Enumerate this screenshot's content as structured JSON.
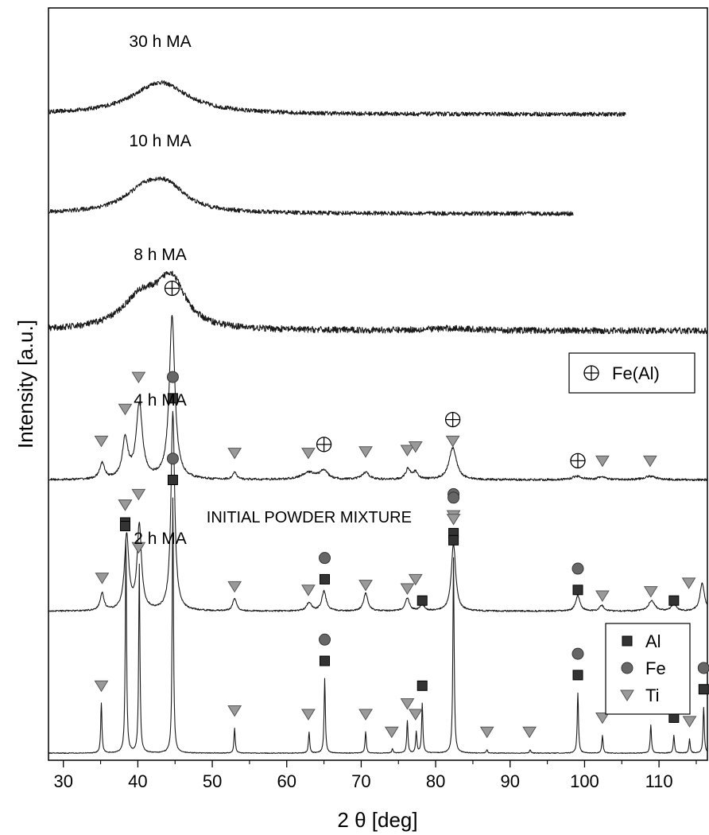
{
  "chart_data": {
    "type": "line",
    "xlabel": "2 θ [deg]",
    "ylabel": "Intensity [a.u.]",
    "xlim": [
      28,
      116.5
    ],
    "x_ticks": [
      30,
      40,
      50,
      60,
      70,
      80,
      90,
      100,
      110
    ],
    "x_tick_labels": [
      "30",
      "40",
      "50",
      "60",
      "70",
      "80",
      "90",
      "100",
      "110"
    ],
    "grid": false,
    "series": [
      {
        "name": "30 h MA",
        "x_end": 105.5,
        "baseline": 9.0,
        "peaks": [
          [
            43.0,
            0.45,
            4.5
          ]
        ],
        "noise": 0.03
      },
      {
        "name": "10 h MA",
        "x_end": 98.5,
        "baseline": 7.6,
        "peaks": [
          [
            41.0,
            0.3,
            3.5
          ],
          [
            44.0,
            0.3,
            3.0
          ]
        ],
        "noise": 0.03
      },
      {
        "name": "8 h MA",
        "x_end": 116.5,
        "baseline": 5.95,
        "peaks": [
          [
            40.5,
            0.45,
            3.2
          ],
          [
            44.5,
            0.65,
            2.2
          ],
          [
            82.0,
            0.03,
            4.0
          ]
        ],
        "noise": 0.045
      },
      {
        "name": "4 h MA",
        "x_end": 116.5,
        "baseline": 3.85,
        "peaks": [
          [
            35.2,
            0.22,
            0.4
          ],
          [
            38.3,
            0.55,
            0.45
          ],
          [
            40.2,
            1.05,
            0.5
          ],
          [
            44.6,
            2.3,
            0.45
          ],
          [
            53.0,
            0.1,
            0.3
          ],
          [
            63.0,
            0.1,
            1.2
          ],
          [
            65.0,
            0.12,
            0.6
          ],
          [
            70.6,
            0.1,
            0.6
          ],
          [
            76.3,
            0.15,
            0.4
          ],
          [
            77.3,
            0.1,
            0.4
          ],
          [
            82.3,
            0.45,
            0.6
          ],
          [
            99.0,
            0.05,
            0.8
          ],
          [
            102.3,
            0.04,
            0.6
          ],
          [
            108.8,
            0.05,
            1.0
          ]
        ],
        "noise": 0.015
      },
      {
        "name": "2 h MA",
        "x_end": 116.5,
        "baseline": 2.0,
        "peaks": [
          [
            35.2,
            0.25,
            0.3
          ],
          [
            38.5,
            1.05,
            0.35
          ],
          [
            40.2,
            1.2,
            0.35
          ],
          [
            44.7,
            2.8,
            0.3
          ],
          [
            53.0,
            0.18,
            0.3
          ],
          [
            63.0,
            0.12,
            0.4
          ],
          [
            65.0,
            0.28,
            0.35
          ],
          [
            70.6,
            0.25,
            0.35
          ],
          [
            76.2,
            0.18,
            0.35
          ],
          [
            78.2,
            0.1,
            0.3
          ],
          [
            82.4,
            0.95,
            0.35
          ],
          [
            99.1,
            0.22,
            0.35
          ],
          [
            102.3,
            0.08,
            0.35
          ],
          [
            109.0,
            0.15,
            0.5
          ],
          [
            112.0,
            0.1,
            0.4
          ],
          [
            115.8,
            0.4,
            0.35
          ]
        ],
        "noise": 0.01
      },
      {
        "name": "INITIAL POWDER MIXTURE",
        "x_end": 116.5,
        "baseline": 0.0,
        "peaks": [
          [
            35.1,
            0.7,
            0.1
          ],
          [
            38.4,
            3.0,
            0.1
          ],
          [
            40.2,
            2.65,
            0.1
          ],
          [
            44.7,
            3.6,
            0.1
          ],
          [
            53.0,
            0.35,
            0.1
          ],
          [
            63.0,
            0.3,
            0.1
          ],
          [
            65.1,
            1.05,
            0.1
          ],
          [
            70.6,
            0.3,
            0.1
          ],
          [
            74.2,
            0.06,
            0.1
          ],
          [
            76.2,
            0.45,
            0.1
          ],
          [
            77.4,
            0.3,
            0.1
          ],
          [
            78.2,
            0.7,
            0.1
          ],
          [
            82.4,
            2.75,
            0.1
          ],
          [
            86.9,
            0.05,
            0.1
          ],
          [
            92.7,
            0.05,
            0.1
          ],
          [
            99.1,
            0.85,
            0.1
          ],
          [
            102.4,
            0.25,
            0.1
          ],
          [
            108.9,
            0.4,
            0.1
          ],
          [
            112.0,
            0.25,
            0.1
          ],
          [
            114.1,
            0.2,
            0.1
          ],
          [
            116.0,
            0.65,
            0.1
          ]
        ],
        "noise": 0.005
      }
    ],
    "annotations": [
      {
        "text": "30 h MA",
        "x": 43.0,
        "y": 9.95
      },
      {
        "text": "10 h MA",
        "x": 43.0,
        "y": 8.55
      },
      {
        "text": "8 h MA",
        "x": 43.0,
        "y": 6.95
      },
      {
        "text": "4 h MA",
        "x": 43.0,
        "y": 4.9
      },
      {
        "text": "2 h MA",
        "x": 43.0,
        "y": 2.95
      },
      {
        "text": "INITIAL POWDER MIXTURE",
        "x": 63.0,
        "y": 3.25
      }
    ],
    "phase_markers": [
      {
        "phase": "Ti",
        "x": 35.1,
        "y": 4.4
      },
      {
        "phase": "Ti",
        "x": 38.3,
        "y": 4.85
      },
      {
        "phase": "Ti",
        "x": 40.1,
        "y": 5.3
      },
      {
        "phase": "Fe(Al)",
        "x": 44.6,
        "y": 6.55
      },
      {
        "phase": "Ti",
        "x": 53.0,
        "y": 4.23
      },
      {
        "phase": "Ti",
        "x": 62.9,
        "y": 4.23
      },
      {
        "phase": "Fe(Al)",
        "x": 65.0,
        "y": 4.35
      },
      {
        "phase": "Ti",
        "x": 70.6,
        "y": 4.25
      },
      {
        "phase": "Ti",
        "x": 76.2,
        "y": 4.27
      },
      {
        "phase": "Ti",
        "x": 77.3,
        "y": 4.32
      },
      {
        "phase": "Ti",
        "x": 82.3,
        "y": 4.4
      },
      {
        "phase": "Fe(Al)",
        "x": 82.3,
        "y": 4.7
      },
      {
        "phase": "Fe(Al)",
        "x": 99.1,
        "y": 4.12
      },
      {
        "phase": "Ti",
        "x": 102.4,
        "y": 4.12
      },
      {
        "phase": "Ti",
        "x": 108.8,
        "y": 4.12
      },
      {
        "phase": "Ti",
        "x": 35.2,
        "y": 2.47
      },
      {
        "phase": "Al",
        "x": 38.3,
        "y": 3.25
      },
      {
        "phase": "Ti",
        "x": 38.3,
        "y": 3.5
      },
      {
        "phase": "Ti",
        "x": 40.1,
        "y": 3.65
      },
      {
        "phase": "Al",
        "x": 44.7,
        "y": 5.0
      },
      {
        "phase": "Fe",
        "x": 44.7,
        "y": 5.3
      },
      {
        "phase": "Ti",
        "x": 53.0,
        "y": 2.35
      },
      {
        "phase": "Ti",
        "x": 62.9,
        "y": 2.3
      },
      {
        "phase": "Al",
        "x": 65.1,
        "y": 2.45
      },
      {
        "phase": "Fe",
        "x": 65.1,
        "y": 2.75
      },
      {
        "phase": "Ti",
        "x": 70.6,
        "y": 2.37
      },
      {
        "phase": "Ti",
        "x": 76.2,
        "y": 2.32
      },
      {
        "phase": "Ti",
        "x": 77.3,
        "y": 2.45
      },
      {
        "phase": "Al",
        "x": 78.2,
        "y": 2.15
      },
      {
        "phase": "Al",
        "x": 82.4,
        "y": 3.1
      },
      {
        "phase": "Ti",
        "x": 82.4,
        "y": 3.35
      },
      {
        "phase": "Fe",
        "x": 82.4,
        "y": 3.65
      },
      {
        "phase": "Al",
        "x": 99.1,
        "y": 2.3
      },
      {
        "phase": "Fe",
        "x": 99.1,
        "y": 2.6
      },
      {
        "phase": "Ti",
        "x": 102.4,
        "y": 2.22
      },
      {
        "phase": "Ti",
        "x": 108.9,
        "y": 2.28
      },
      {
        "phase": "Al",
        "x": 112.0,
        "y": 2.15
      },
      {
        "phase": "Ti",
        "x": 114.0,
        "y": 2.4
      },
      {
        "phase": "Ti",
        "x": 35.1,
        "y": 0.95
      },
      {
        "phase": "Al",
        "x": 38.3,
        "y": 3.2
      },
      {
        "phase": "Ti",
        "x": 38.3,
        "y": 3.5
      },
      {
        "phase": "Ti",
        "x": 40.1,
        "y": 2.9
      },
      {
        "phase": "Al",
        "x": 44.7,
        "y": 3.85
      },
      {
        "phase": "Fe",
        "x": 44.7,
        "y": 4.15
      },
      {
        "phase": "Ti",
        "x": 53.0,
        "y": 0.6
      },
      {
        "phase": "Ti",
        "x": 62.9,
        "y": 0.55
      },
      {
        "phase": "Al",
        "x": 65.1,
        "y": 1.3
      },
      {
        "phase": "Fe",
        "x": 65.1,
        "y": 1.6
      },
      {
        "phase": "Ti",
        "x": 70.6,
        "y": 0.55
      },
      {
        "phase": "Ti",
        "x": 74.1,
        "y": 0.3
      },
      {
        "phase": "Ti",
        "x": 76.2,
        "y": 0.7
      },
      {
        "phase": "Ti",
        "x": 77.3,
        "y": 0.55
      },
      {
        "phase": "Al",
        "x": 78.2,
        "y": 0.95
      },
      {
        "phase": "Al",
        "x": 82.4,
        "y": 3.0
      },
      {
        "phase": "Ti",
        "x": 82.4,
        "y": 3.3
      },
      {
        "phase": "Fe",
        "x": 82.4,
        "y": 3.6
      },
      {
        "phase": "Ti",
        "x": 86.9,
        "y": 0.3
      },
      {
        "phase": "Ti",
        "x": 92.6,
        "y": 0.3
      },
      {
        "phase": "Al",
        "x": 99.1,
        "y": 1.1
      },
      {
        "phase": "Fe",
        "x": 99.1,
        "y": 1.4
      },
      {
        "phase": "Ti",
        "x": 102.4,
        "y": 0.5
      },
      {
        "phase": "Ti",
        "x": 108.9,
        "y": 0.65
      },
      {
        "phase": "Al",
        "x": 112.0,
        "y": 0.5
      },
      {
        "phase": "Ti",
        "x": 114.1,
        "y": 0.45
      },
      {
        "phase": "Al",
        "x": 116.0,
        "y": 0.9
      },
      {
        "phase": "Fe",
        "x": 116.0,
        "y": 1.2
      }
    ],
    "legends": [
      {
        "position": "right-middle",
        "entries": [
          {
            "phase": "Fe(Al)",
            "label": "Fe(Al)"
          }
        ]
      },
      {
        "position": "bottom-right",
        "entries": [
          {
            "phase": "Al",
            "label": "Al"
          },
          {
            "phase": "Fe",
            "label": "Fe"
          },
          {
            "phase": "Ti",
            "label": "Ti"
          }
        ]
      }
    ],
    "colors": {
      "line": "#1a1a1a",
      "marker_fill": "#999999",
      "marker_square": "#333333"
    }
  }
}
